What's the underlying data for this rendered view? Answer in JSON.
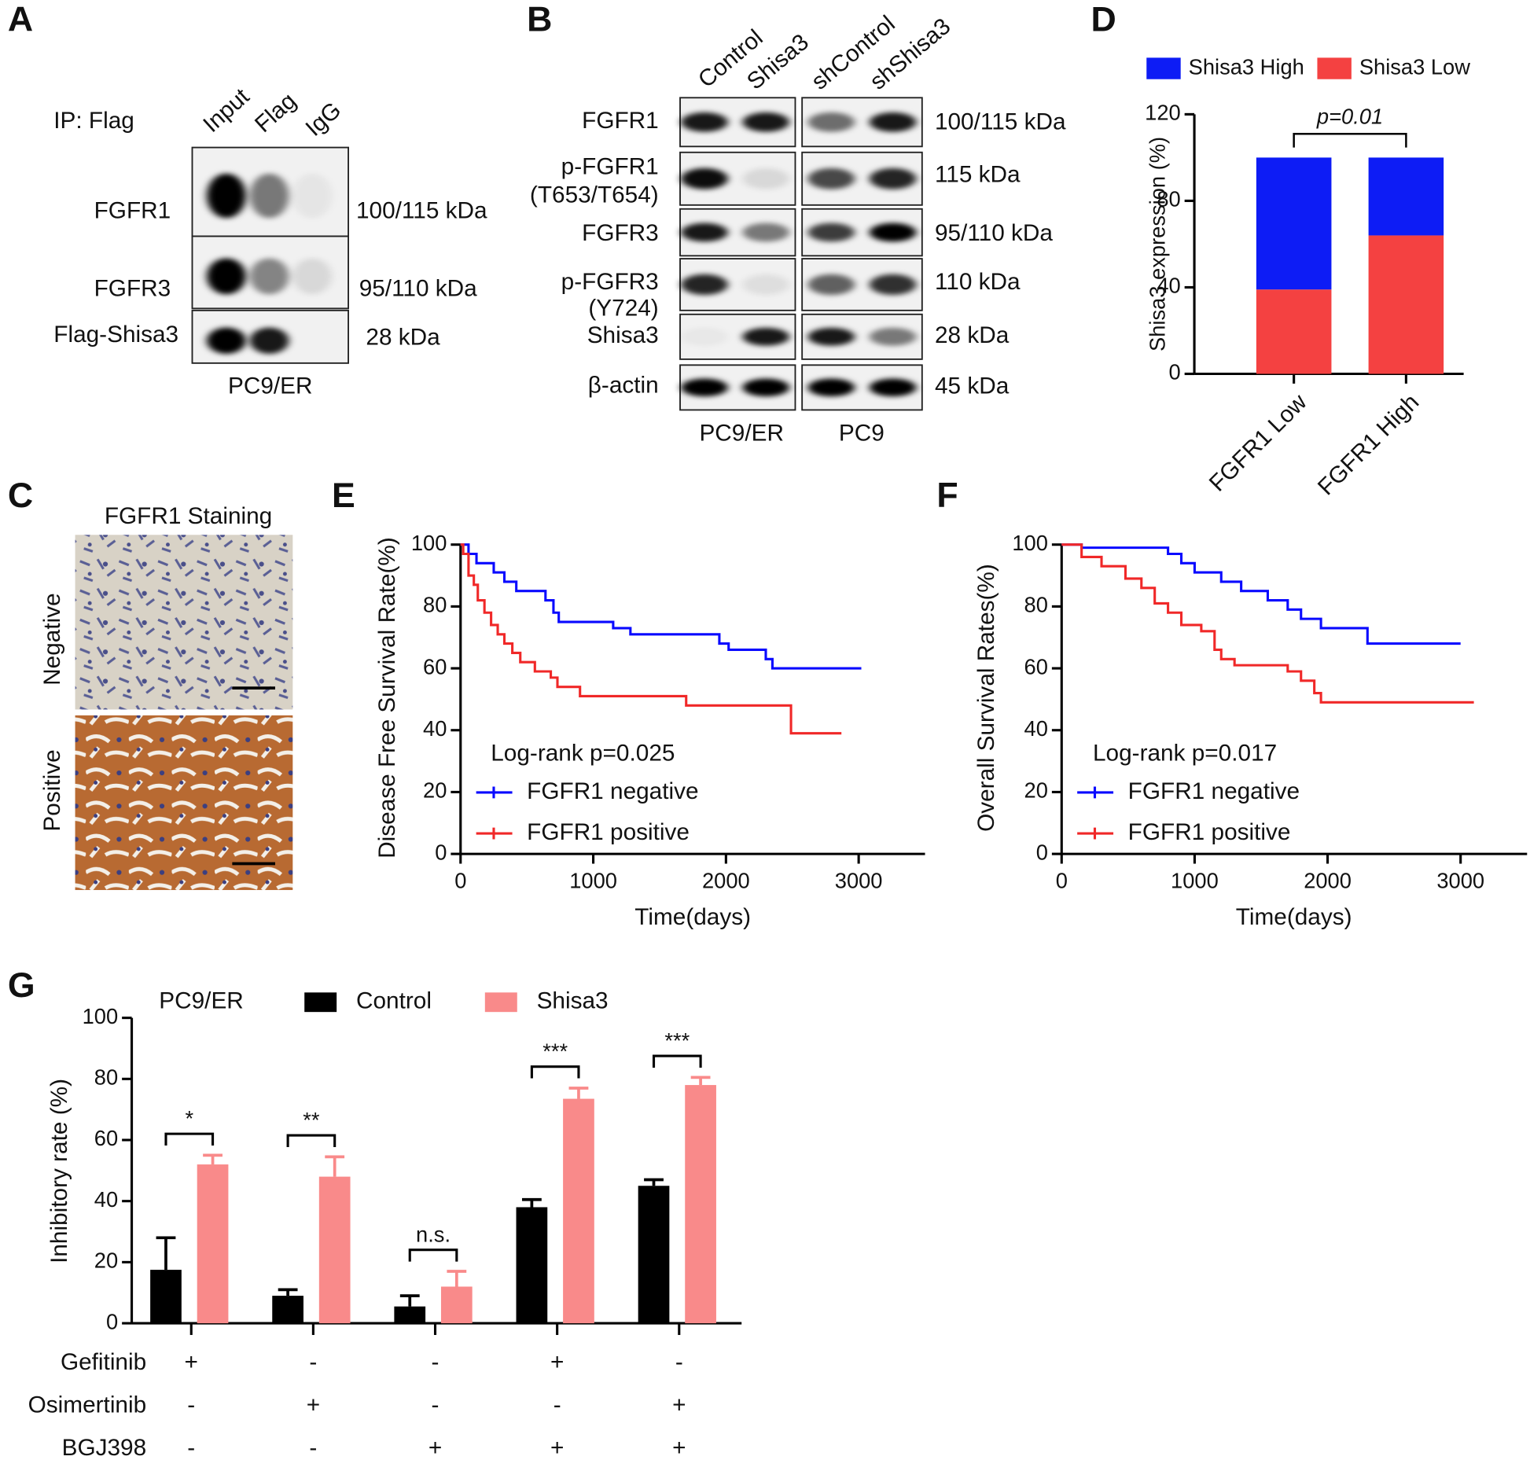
{
  "panel_labels": [
    "A",
    "B",
    "C",
    "D",
    "E",
    "F",
    "G"
  ],
  "panel_a": {
    "ip_label": "IP: Flag",
    "lanes": [
      "Input",
      "Flag",
      "IgG"
    ],
    "rows": [
      {
        "protein": "FGFR1",
        "size": "100/115 kDa"
      },
      {
        "protein": "FGFR3",
        "size": "95/110 kDa"
      },
      {
        "protein": "Flag-Shisa3",
        "size": "28 kDa"
      }
    ],
    "cell_line": "PC9/ER"
  },
  "panel_b": {
    "lanes": [
      "Control",
      "Shisa3",
      "shControl",
      "shShisa3"
    ],
    "rows": [
      {
        "protein": [
          "FGFR1"
        ],
        "size": "100/115 kDa"
      },
      {
        "protein": [
          "p-FGFR1",
          "(T653/T654)"
        ],
        "size": "115 kDa"
      },
      {
        "protein": [
          "FGFR3"
        ],
        "size": "95/110 kDa"
      },
      {
        "protein": [
          "p-FGFR3",
          "(Y724)"
        ],
        "size": "110 kDa"
      },
      {
        "protein": [
          "Shisa3"
        ],
        "size": "28 kDa"
      },
      {
        "protein": [
          "β-actin"
        ],
        "size": "45 kDa"
      }
    ],
    "cell_lines": [
      "PC9/ER",
      "PC9"
    ]
  },
  "panel_c": {
    "title": "FGFR1 Staining",
    "rows": [
      "Negative",
      "Positive"
    ]
  },
  "chart_data": [
    {
      "type": "bar",
      "stacked": true,
      "categories": [
        "FGFR1 Low",
        "FGFR1 High"
      ],
      "series": [
        {
          "name": "Shisa3 Low",
          "color": "#f44141",
          "values": [
            39,
            64
          ]
        },
        {
          "name": "Shisa3 High",
          "color": "#0d1cf5",
          "values": [
            61,
            36
          ]
        }
      ],
      "ylim": [
        0,
        120
      ],
      "yticks": [
        0,
        40,
        80,
        120
      ],
      "y_label": "Shisa3 expression (%)",
      "annotation": "p=0.01"
    },
    {
      "type": "line",
      "x_label": "Time(days)",
      "y_label": "Disease Free Survival Rate(%)",
      "annotation": "Log-rank p=0.025",
      "xlim": [
        0,
        3500
      ],
      "xticks": [
        0,
        1000,
        2000,
        3000
      ],
      "ylim": [
        0,
        100
      ],
      "yticks": [
        0,
        20,
        40,
        60,
        80,
        100
      ],
      "series": [
        {
          "name": "FGFR1 negative",
          "color": "#0a0aff",
          "x": [
            0,
            60,
            60,
            120,
            120,
            250,
            250,
            330,
            330,
            420,
            420,
            640,
            640,
            700,
            700,
            740,
            740,
            1150,
            1150,
            1280,
            1280,
            1950,
            1950,
            2020,
            2020,
            2300,
            2300,
            2350,
            2350,
            3020
          ],
          "values": [
            100,
            100,
            97,
            97,
            94,
            94,
            91,
            91,
            88,
            88,
            85,
            85,
            82,
            82,
            78,
            78,
            75,
            75,
            73,
            73,
            71,
            71,
            68,
            68,
            66,
            66,
            63,
            63,
            60,
            60
          ]
        },
        {
          "name": "FGFR1 positive",
          "color": "#f02828",
          "x": [
            0,
            20,
            20,
            60,
            60,
            100,
            100,
            130,
            130,
            180,
            180,
            230,
            230,
            280,
            280,
            330,
            330,
            390,
            390,
            450,
            450,
            560,
            560,
            680,
            680,
            730,
            730,
            900,
            900,
            1700,
            1700,
            2490,
            2490,
            2870
          ],
          "values": [
            100,
            100,
            97,
            97,
            90,
            90,
            87,
            87,
            82,
            82,
            78,
            78,
            74,
            74,
            71,
            71,
            68,
            68,
            65,
            65,
            62,
            62,
            59,
            59,
            57,
            57,
            54,
            54,
            51,
            51,
            48,
            48,
            39,
            39
          ]
        }
      ]
    },
    {
      "type": "line",
      "x_label": "Time(days)",
      "y_label": "Overall Survival Rates(%)",
      "annotation": "Log-rank p=0.017",
      "xlim": [
        0,
        3500
      ],
      "xticks": [
        0,
        1000,
        2000,
        3000
      ],
      "ylim": [
        0,
        100
      ],
      "yticks": [
        0,
        20,
        40,
        60,
        80,
        100
      ],
      "series": [
        {
          "name": "FGFR1 negative",
          "color": "#0a0aff",
          "x": [
            0,
            150,
            150,
            800,
            800,
            900,
            900,
            1000,
            1000,
            1200,
            1200,
            1350,
            1350,
            1550,
            1550,
            1700,
            1700,
            1800,
            1800,
            1950,
            1950,
            2300,
            2300,
            3000
          ],
          "values": [
            100,
            100,
            99,
            99,
            97,
            97,
            94,
            94,
            91,
            91,
            88,
            88,
            85,
            85,
            82,
            82,
            79,
            79,
            76,
            76,
            73,
            73,
            68,
            68
          ]
        },
        {
          "name": "FGFR1 positive",
          "color": "#f02828",
          "x": [
            0,
            150,
            150,
            300,
            300,
            480,
            480,
            600,
            600,
            700,
            700,
            800,
            800,
            900,
            900,
            1050,
            1050,
            1150,
            1150,
            1200,
            1200,
            1300,
            1300,
            1700,
            1700,
            1800,
            1800,
            1900,
            1900,
            1950,
            1950,
            3100
          ],
          "values": [
            100,
            100,
            96,
            96,
            93,
            93,
            89,
            89,
            86,
            86,
            81,
            81,
            78,
            78,
            74,
            74,
            72,
            72,
            66,
            66,
            63,
            63,
            61,
            61,
            59,
            59,
            56,
            56,
            52,
            52,
            49,
            49
          ]
        }
      ]
    },
    {
      "type": "bar",
      "title": "PC9/ER",
      "categories": [
        null,
        null,
        null,
        null,
        null
      ],
      "y_label": "Inhibitory rate (%)",
      "ylim": [
        0,
        100
      ],
      "yticks": [
        0,
        20,
        40,
        60,
        80,
        100
      ],
      "series": [
        {
          "name": "Control",
          "color": "#000000",
          "values": [
            17.5,
            9,
            5.5,
            38,
            45
          ],
          "errors": [
            10.5,
            2,
            3.5,
            2.5,
            2
          ]
        },
        {
          "name": "Shisa3",
          "color": "#f98a8a",
          "values": [
            52,
            48,
            12,
            73.5,
            78
          ],
          "errors": [
            3,
            6.5,
            5,
            3.5,
            2.5
          ]
        }
      ],
      "significance": [
        "*",
        "**",
        "n.s.",
        "***",
        "***"
      ],
      "treatments": [
        {
          "name": "Gefitinib",
          "values": [
            "+",
            "-",
            "-",
            "+",
            "-"
          ]
        },
        {
          "name": "Osimertinib",
          "values": [
            "-",
            "+",
            "-",
            "-",
            "+"
          ]
        },
        {
          "name": "BGJ398",
          "values": [
            "-",
            "-",
            "+",
            "+",
            "+"
          ]
        }
      ]
    }
  ]
}
